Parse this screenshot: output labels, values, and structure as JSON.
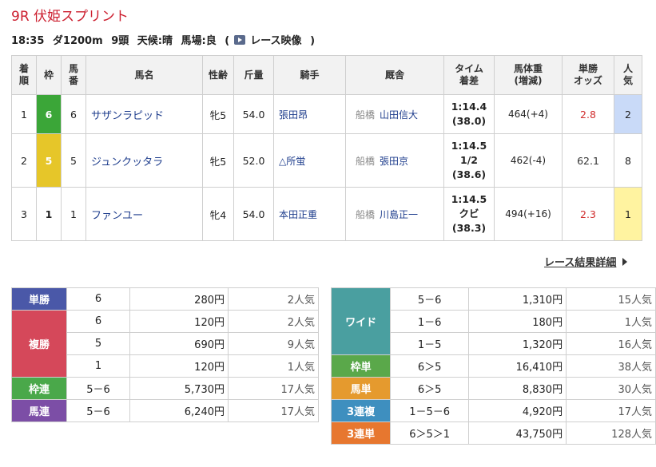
{
  "race": {
    "title": "9R 伏姫スプリント",
    "time": "18:35",
    "course": "ダ1200m",
    "runners": "9頭",
    "weather": "天候:晴",
    "going": "馬場:良",
    "video_open": "(",
    "video_label": "レース映像",
    "video_close": ")"
  },
  "table": {
    "headers": [
      "着順",
      "枠",
      "馬番",
      "馬名",
      "性齢",
      "斤量",
      "騎手",
      "厩舎",
      "タイム着差",
      "馬体重(増減)",
      "単勝オッズ",
      "人気"
    ],
    "header_lines": [
      [
        "着",
        "順"
      ],
      [
        "枠",
        ""
      ],
      [
        "馬",
        "番"
      ],
      [
        "馬名",
        ""
      ],
      [
        "性齢",
        ""
      ],
      [
        "斤量",
        ""
      ],
      [
        "騎手",
        ""
      ],
      [
        "厩舎",
        ""
      ],
      [
        "タイム",
        "着差"
      ],
      [
        "馬体重",
        "(増減)"
      ],
      [
        "単勝",
        "オッズ"
      ],
      [
        "人",
        "気"
      ]
    ],
    "rows": [
      {
        "rank": "1",
        "waku": "6",
        "umaban": "6",
        "horse": "サザンラピッド",
        "sexage": "牝5",
        "kinryo": "54.0",
        "jockey": "張田昂",
        "trainer_area": "船橋",
        "trainer": "山田信大",
        "time": "1:14.4",
        "margin": "",
        "last": "(38.0)",
        "weight": "464(+4)",
        "odds": "2.8",
        "pop": "2"
      },
      {
        "rank": "2",
        "waku": "5",
        "umaban": "5",
        "horse": "ジュンクッタラ",
        "sexage": "牝5",
        "kinryo": "52.0",
        "jockey": "△所蛍",
        "trainer_area": "船橋",
        "trainer": "張田京",
        "time": "1:14.5",
        "margin": "1/2",
        "last": "(38.6)",
        "weight": "462(-4)",
        "odds": "62.1",
        "pop": "8"
      },
      {
        "rank": "3",
        "waku": "1",
        "umaban": "1",
        "horse": "ファンユー",
        "sexage": "牝4",
        "kinryo": "54.0",
        "jockey": "本田正重",
        "trainer_area": "船橋",
        "trainer": "川島正一",
        "time": "1:14.5",
        "margin": "クビ",
        "last": "(38.3)",
        "weight": "494(+16)",
        "odds": "2.3",
        "pop": "1"
      }
    ]
  },
  "detail_link": "レース結果詳細",
  "payouts_left": {
    "tansho": {
      "label": "単勝",
      "rows": [
        {
          "num": "6",
          "yen": "280円",
          "pop": "2人気"
        }
      ]
    },
    "fukusho": {
      "label": "複勝",
      "rows": [
        {
          "num": "6",
          "yen": "120円",
          "pop": "2人気"
        },
        {
          "num": "5",
          "yen": "690円",
          "pop": "9人気"
        },
        {
          "num": "1",
          "yen": "120円",
          "pop": "1人気"
        }
      ]
    },
    "wakuren": {
      "label": "枠連",
      "rows": [
        {
          "num": "5－6",
          "yen": "5,730円",
          "pop": "17人気"
        }
      ]
    },
    "umaren": {
      "label": "馬連",
      "rows": [
        {
          "num": "5－6",
          "yen": "6,240円",
          "pop": "17人気"
        }
      ]
    }
  },
  "payouts_right": {
    "wide": {
      "label": "ワイド",
      "rows": [
        {
          "num": "5－6",
          "yen": "1,310円",
          "pop": "15人気"
        },
        {
          "num": "1－6",
          "yen": "180円",
          "pop": "1人気"
        },
        {
          "num": "1－5",
          "yen": "1,320円",
          "pop": "16人気"
        }
      ]
    },
    "wakutan": {
      "label": "枠単",
      "rows": [
        {
          "num": "6＞5",
          "yen": "16,410円",
          "pop": "38人気"
        }
      ]
    },
    "umatan": {
      "label": "馬単",
      "rows": [
        {
          "num": "6＞5",
          "yen": "8,830円",
          "pop": "30人気"
        }
      ]
    },
    "sanfuku": {
      "label": "3連複",
      "rows": [
        {
          "num": "1－5－6",
          "yen": "4,920円",
          "pop": "17人気"
        }
      ]
    },
    "santan": {
      "label": "3連単",
      "rows": [
        {
          "num": "6＞5＞1",
          "yen": "43,750円",
          "pop": "128人気"
        }
      ]
    }
  },
  "colors": {
    "title": "#cc1f2f",
    "waku6": "#3ba638",
    "waku5": "#e6c629",
    "link": "#1d3c8c",
    "odds_fav": "#d12f2f",
    "pop_blue": "#c9daf8",
    "pop_yellow": "#fff3a0"
  },
  "icons": [
    "film-icon",
    "chevron-right-icon"
  ]
}
